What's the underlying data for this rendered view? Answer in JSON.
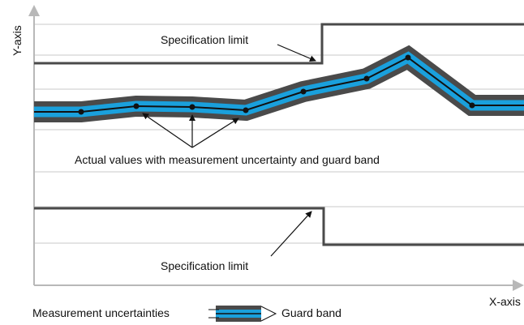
{
  "axes": {
    "y_label": "Y-axis",
    "x_label": "X-axis"
  },
  "annotations": {
    "upper_spec_label": "Specification limit",
    "lower_spec_label": "Specification limit",
    "actual_values_label": "Actual values with measurement uncertainty and guard band"
  },
  "legend": {
    "uncertainty_label": "Measurement uncertainties",
    "guard_band_label": "Guard band"
  },
  "colors": {
    "guard_band": "#4a4a4a",
    "uncertainty": "#1aa0dc",
    "limit_line": "#4a4a4a",
    "grid": "#c8c8c8",
    "axis": "#b8b8b8"
  }
}
